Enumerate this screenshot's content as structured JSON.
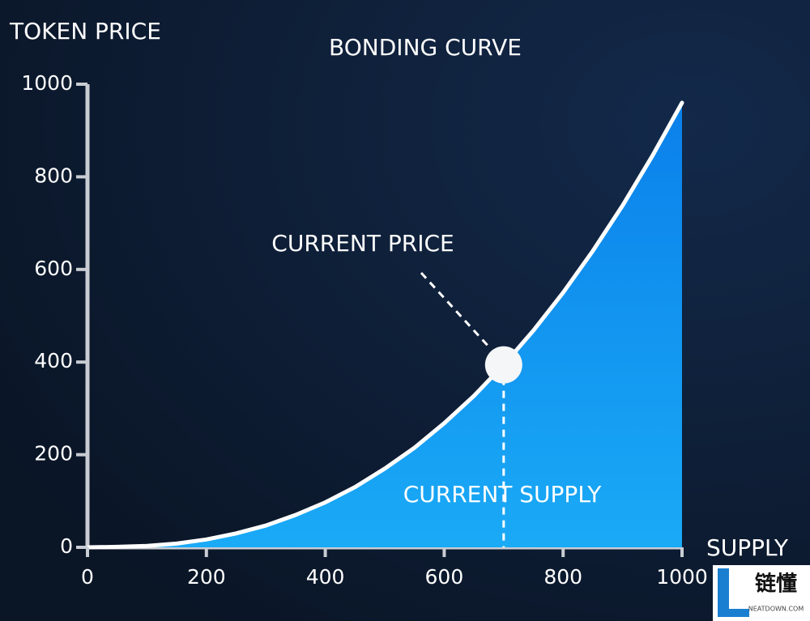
{
  "chart_data": {
    "type": "area",
    "title": "BONDING CURVE",
    "y_label": "TOKEN PRICE",
    "x_label": "SUPPLY",
    "x": [
      0,
      50,
      100,
      150,
      200,
      250,
      300,
      350,
      400,
      450,
      500,
      550,
      600,
      650,
      700,
      750,
      800,
      850,
      900,
      950,
      1000
    ],
    "values": [
      0,
      1,
      3,
      8,
      17,
      30,
      47,
      70,
      97,
      130,
      170,
      215,
      268,
      327,
      394,
      468,
      550,
      640,
      738,
      845,
      960
    ],
    "color": "#0f8ff0",
    "xlim": [
      0,
      1000
    ],
    "ylim": [
      0,
      1000
    ],
    "xticks": [
      0,
      200,
      400,
      600,
      800,
      1000
    ],
    "yticks": [
      0,
      200,
      400,
      600,
      800,
      1000
    ],
    "point": {
      "x": 700,
      "y": 394,
      "label": "CURRENT PRICE"
    },
    "supply_label": "CURRENT SUPPLY"
  },
  "watermark": {
    "title": "链懂",
    "subtitle": "NEATDOWN.COM"
  }
}
